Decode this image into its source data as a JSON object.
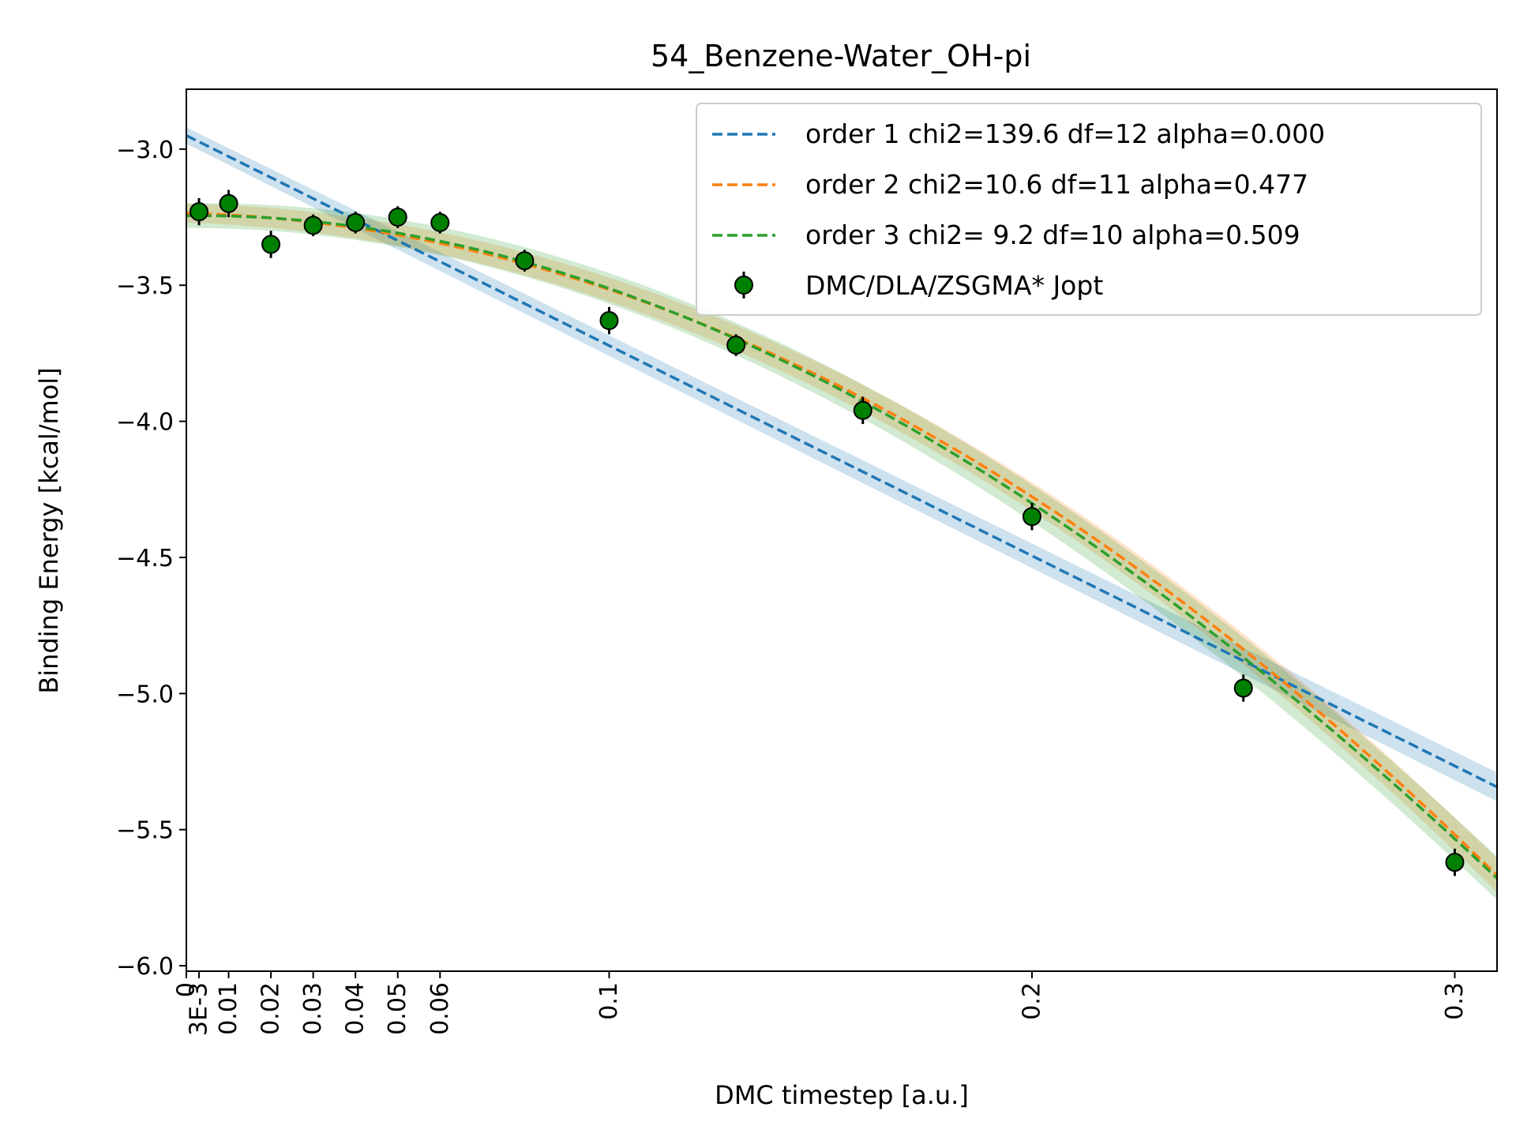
{
  "chart_data": {
    "type": "scatter",
    "title": "54_Benzene-Water_OH-pi",
    "xlabel": "DMC timestep [a.u.]",
    "ylabel": "Binding Energy [kcal/mol]",
    "xlim": [
      0,
      0.31
    ],
    "ylim": [
      -6.02,
      -2.78
    ],
    "xticks": [
      {
        "value": 0,
        "label": "0"
      },
      {
        "value": 0.003,
        "label": "3E-3"
      },
      {
        "value": 0.01,
        "label": "0.01"
      },
      {
        "value": 0.02,
        "label": "0.02"
      },
      {
        "value": 0.03,
        "label": "0.03"
      },
      {
        "value": 0.04,
        "label": "0.04"
      },
      {
        "value": 0.05,
        "label": "0.05"
      },
      {
        "value": 0.06,
        "label": "0.06"
      },
      {
        "value": 0.1,
        "label": "0.1"
      },
      {
        "value": 0.2,
        "label": "0.2"
      },
      {
        "value": 0.3,
        "label": "0.3"
      }
    ],
    "yticks": [
      {
        "value": -3.0,
        "label": "−3.0"
      },
      {
        "value": -3.5,
        "label": "−3.5"
      },
      {
        "value": -4.0,
        "label": "−4.0"
      },
      {
        "value": -4.5,
        "label": "−4.5"
      },
      {
        "value": -5.0,
        "label": "−5.0"
      },
      {
        "value": -5.5,
        "label": "−5.5"
      },
      {
        "value": -6.0,
        "label": "−6.0"
      }
    ],
    "grid": false,
    "legend_position": "top-right",
    "points": {
      "name": "DMC/DLA/ZSGMA* Jopt",
      "color": "#008000",
      "x": [
        0.003,
        0.01,
        0.02,
        0.03,
        0.04,
        0.05,
        0.06,
        0.08,
        0.1,
        0.13,
        0.16,
        0.2,
        0.25,
        0.3
      ],
      "y": [
        -3.23,
        -3.2,
        -3.35,
        -3.28,
        -3.27,
        -3.25,
        -3.27,
        -3.41,
        -3.63,
        -3.72,
        -3.96,
        -4.35,
        -4.98,
        -5.62
      ],
      "err": [
        0.05,
        0.05,
        0.05,
        0.04,
        0.04,
        0.04,
        0.04,
        0.04,
        0.05,
        0.04,
        0.05,
        0.05,
        0.05,
        0.05
      ]
    },
    "fits": [
      {
        "name": "order 1 chi2=139.6 df=12 alpha=0.000",
        "color": "#1f77b4",
        "coeffs": [
          -2.95,
          -7.72
        ],
        "band": 0.03
      },
      {
        "name": "order 2 chi2=10.6 df=11 alpha=0.477",
        "color": "#ff7f0e",
        "coeffs": [
          -3.235,
          -0.41,
          -24.0
        ],
        "band": 0.035
      },
      {
        "name": "order 3 chi2= 9.2 df=10 alpha=0.509",
        "color": "#2ca02c",
        "coeffs": [
          -3.245,
          0.2,
          -30.0,
          13.0
        ],
        "band": 0.045
      }
    ]
  }
}
